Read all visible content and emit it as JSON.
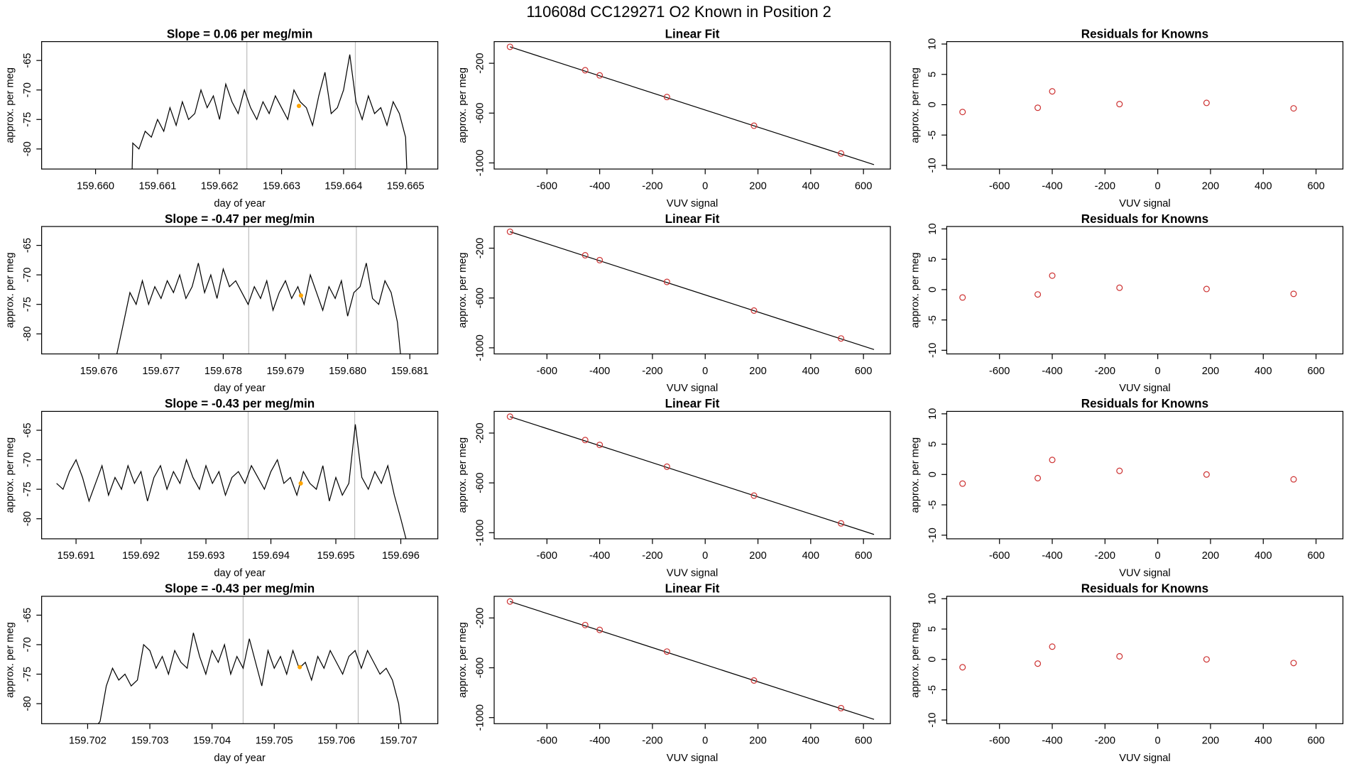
{
  "title": "110608d      CC129271    O2 Known in Position  2",
  "chart_data": [
    {
      "type": "line",
      "title": "Slope =  0.06  per meg/min",
      "xlabel": "day of year",
      "ylabel": "approx. per meg",
      "color": "#000000",
      "x": [
        159.66059,
        159.6606,
        159.6607,
        159.6608,
        159.6609,
        159.661,
        159.6611,
        159.6612,
        159.6613,
        159.6614,
        159.6615,
        159.6616,
        159.6617,
        159.6618,
        159.6619,
        159.662,
        159.6621,
        159.6622,
        159.6623,
        159.6624,
        159.6625,
        159.6626,
        159.6627,
        159.6628,
        159.6629,
        159.663,
        159.6631,
        159.6632,
        159.6633,
        159.6634,
        159.6635,
        159.6636,
        159.6637,
        159.6638,
        159.6639,
        159.664,
        159.6641,
        159.6642,
        159.6643,
        159.6644,
        159.6645,
        159.6646,
        159.6647,
        159.6648,
        159.6649,
        159.665,
        159.66502
      ],
      "values": [
        -83.4,
        -79,
        -80,
        -77,
        -78,
        -75,
        -77,
        -73,
        -76,
        -72,
        -75,
        -74,
        -70,
        -73,
        -71,
        -75,
        -69,
        -72,
        -74,
        -70,
        -73,
        -75,
        -72,
        -74,
        -71,
        -73,
        -75,
        -70,
        -72,
        -73,
        -76,
        -71,
        -67,
        -74,
        -73,
        -70,
        -64,
        -72,
        -75,
        -71,
        -74,
        -73,
        -76,
        -72,
        -74,
        -78,
        -83.4
      ],
      "vlines": [
        159.66244,
        159.66419
      ],
      "vline_color": "#bebebe",
      "highlight": {
        "x": 159.66328,
        "y": -72.7
      },
      "highlight_color": "#ffa500",
      "xlim": [
        159.65913,
        159.66552
      ],
      "ylim": [
        -83.4,
        -61.8
      ],
      "xticks": [
        {
          "value": 159.66,
          "label": "159.660"
        },
        159.661,
        159.662,
        159.663,
        159.664,
        159.665
      ],
      "yticks": [
        -65,
        -70,
        -75,
        -80
      ]
    },
    {
      "type": "scatter",
      "title": "Linear Fit",
      "xlabel": "VUV signal",
      "ylabel": "approx. per meg",
      "color": "#cd3333",
      "x": [
        -740,
        -455,
        -400,
        -145,
        185,
        515
      ],
      "values": [
        -68,
        -256,
        -297,
        -471,
        -701,
        -924
      ],
      "fit_x": [
        -740,
        640
      ],
      "fit_y": [
        -68,
        -1014
      ],
      "xlim": [
        -800,
        702
      ],
      "ylim": [
        -1049,
        -26
      ],
      "xticks": [
        -600,
        -400,
        -200,
        0,
        200,
        400,
        600
      ],
      "yticks": [
        -200,
        -600,
        -1000
      ]
    },
    {
      "type": "scatter",
      "title": "Residuals for Knowns",
      "xlabel": "VUV signal",
      "ylabel": "approx. per meg",
      "color": "#cd3333",
      "x": [
        -740,
        -455,
        -400,
        -145,
        185,
        515
      ],
      "values": [
        -1.2,
        -0.5,
        2.2,
        0.1,
        0.3,
        -0.6
      ],
      "xlim": [
        -800,
        702
      ],
      "ylim": [
        -10.6,
        10.4
      ],
      "xticks": [
        -600,
        -400,
        -200,
        0,
        200,
        400,
        600
      ],
      "yticks": [
        -10,
        -5,
        0,
        5,
        10
      ]
    },
    {
      "type": "line",
      "title": "Slope =  -0.47  per meg/min",
      "xlabel": "day of year",
      "ylabel": "approx. per meg",
      "color": "#000000",
      "x": [
        159.67629,
        159.6764,
        159.6765,
        159.6766,
        159.6767,
        159.6768,
        159.6769,
        159.677,
        159.6771,
        159.6772,
        159.6773,
        159.6774,
        159.6775,
        159.6776,
        159.6777,
        159.6778,
        159.6779,
        159.678,
        159.6781,
        159.6782,
        159.6783,
        159.6784,
        159.6785,
        159.6786,
        159.6787,
        159.6788,
        159.6789,
        159.679,
        159.6791,
        159.6792,
        159.6793,
        159.6794,
        159.6795,
        159.6796,
        159.6797,
        159.6798,
        159.6799,
        159.68,
        159.6801,
        159.6802,
        159.6803,
        159.6804,
        159.6805,
        159.6806,
        159.6807,
        159.6808,
        159.68085
      ],
      "values": [
        -83.4,
        -78,
        -73,
        -75,
        -71,
        -75,
        -72,
        -74,
        -71,
        -73,
        -70,
        -74,
        -72,
        -68,
        -73,
        -70,
        -74,
        -69,
        -72,
        -71,
        -73,
        -75,
        -72,
        -74,
        -71,
        -76,
        -73,
        -71,
        -74,
        -72,
        -75,
        -70,
        -73,
        -76,
        -72,
        -74,
        -71,
        -77,
        -73,
        -72,
        -68,
        -74,
        -75,
        -71,
        -73,
        -78,
        -83.4
      ],
      "vlines": [
        159.67841,
        159.68014
      ],
      "vline_color": "#bebebe",
      "highlight": {
        "x": 159.67925,
        "y": -73.5
      },
      "highlight_color": "#ffa500",
      "xlim": [
        159.67508,
        159.68145
      ],
      "ylim": [
        -83.4,
        -61.8
      ],
      "xticks": [
        159.676,
        159.677,
        159.678,
        159.679,
        {
          "value": 159.68,
          "label": "159.680"
        },
        159.681
      ],
      "yticks": [
        -65,
        -70,
        -75,
        -80
      ]
    },
    {
      "type": "scatter",
      "title": "Linear Fit",
      "xlabel": "VUV signal",
      "ylabel": "approx. per meg",
      "color": "#cd3333",
      "x": [
        -740,
        -455,
        -400,
        -145,
        185,
        515
      ],
      "values": [
        -68,
        -257,
        -296,
        -471,
        -701,
        -925
      ],
      "fit_x": [
        -740,
        640
      ],
      "fit_y": [
        -68,
        -1014
      ],
      "xlim": [
        -800,
        702
      ],
      "ylim": [
        -1049,
        -26
      ],
      "xticks": [
        -600,
        -400,
        -200,
        0,
        200,
        400,
        600
      ],
      "yticks": [
        -200,
        -600,
        -1000
      ]
    },
    {
      "type": "scatter",
      "title": "Residuals for Knowns",
      "xlabel": "VUV signal",
      "ylabel": "approx. per meg",
      "color": "#cd3333",
      "x": [
        -740,
        -455,
        -400,
        -145,
        185,
        515
      ],
      "values": [
        -1.3,
        -0.8,
        2.3,
        0.3,
        0.1,
        -0.7
      ],
      "xlim": [
        -800,
        702
      ],
      "ylim": [
        -10.6,
        10.4
      ],
      "xticks": [
        -600,
        -400,
        -200,
        0,
        200,
        400,
        600
      ],
      "yticks": [
        -10,
        -5,
        0,
        5,
        10
      ]
    },
    {
      "type": "line",
      "title": "Slope =  -0.43  per meg/min",
      "xlabel": "day of year",
      "ylabel": "approx. per meg",
      "color": "#000000",
      "x": [
        159.6907,
        159.6908,
        159.6909,
        159.691,
        159.6911,
        159.6912,
        159.6913,
        159.6914,
        159.6915,
        159.6916,
        159.6917,
        159.6918,
        159.6919,
        159.692,
        159.6921,
        159.6922,
        159.6923,
        159.6924,
        159.6925,
        159.6926,
        159.6927,
        159.6928,
        159.6929,
        159.693,
        159.6931,
        159.6932,
        159.6933,
        159.6934,
        159.6935,
        159.6936,
        159.6937,
        159.6938,
        159.6939,
        159.694,
        159.6941,
        159.6942,
        159.6943,
        159.6944,
        159.6945,
        159.6946,
        159.6947,
        159.6948,
        159.6949,
        159.695,
        159.6951,
        159.6952,
        159.6953,
        159.6954,
        159.6955,
        159.6956,
        159.6957,
        159.6958,
        159.6959,
        159.696,
        159.69608
      ],
      "values": [
        -74,
        -75,
        -72,
        -70,
        -73,
        -77,
        -74,
        -71,
        -76,
        -73,
        -75,
        -71,
        -74,
        -72,
        -77,
        -73,
        -71,
        -75,
        -72,
        -74,
        -70,
        -73,
        -75,
        -71,
        -74,
        -72,
        -76,
        -73,
        -72,
        -74,
        -71,
        -73,
        -75,
        -72,
        -70,
        -74,
        -73,
        -76,
        -72,
        -74,
        -75,
        -71,
        -77,
        -73,
        -76,
        -74,
        -64,
        -73,
        -75,
        -72,
        -74,
        -71,
        -76,
        -80,
        -83.4
      ],
      "vlines": [
        159.69365,
        159.69529
      ],
      "vline_color": "#bebebe",
      "highlight": {
        "x": 159.69446,
        "y": -74
      },
      "highlight_color": "#ffa500",
      "xlim": [
        159.69047,
        159.69657
      ],
      "ylim": [
        -83.4,
        -61.8
      ],
      "xticks": [
        159.691,
        159.692,
        159.693,
        159.694,
        159.695,
        159.696
      ],
      "yticks": [
        -65,
        -70,
        -75,
        -80
      ]
    },
    {
      "type": "scatter",
      "title": "Linear Fit",
      "xlabel": "VUV signal",
      "ylabel": "approx. per meg",
      "color": "#cd3333",
      "x": [
        -740,
        -455,
        -400,
        -145,
        185,
        515
      ],
      "values": [
        -68,
        -256,
        -295,
        -470,
        -702,
        -925
      ],
      "fit_x": [
        -740,
        640
      ],
      "fit_y": [
        -68,
        -1014
      ],
      "xlim": [
        -800,
        702
      ],
      "ylim": [
        -1049,
        -26
      ],
      "xticks": [
        -600,
        -400,
        -200,
        0,
        200,
        400,
        600
      ],
      "yticks": [
        -200,
        -600,
        -1000
      ]
    },
    {
      "type": "scatter",
      "title": "Residuals for Knowns",
      "xlabel": "VUV signal",
      "ylabel": "approx. per meg",
      "color": "#cd3333",
      "x": [
        -740,
        -455,
        -400,
        -145,
        185,
        515
      ],
      "values": [
        -1.5,
        -0.6,
        2.4,
        0.6,
        0,
        -0.8
      ],
      "xlim": [
        -800,
        702
      ],
      "ylim": [
        -10.6,
        10.4
      ],
      "xticks": [
        -600,
        -400,
        -200,
        0,
        200,
        400,
        600
      ],
      "yticks": [
        -10,
        -5,
        0,
        5,
        10
      ]
    },
    {
      "type": "line",
      "title": "Slope =  -0.43  per meg/min",
      "xlabel": "day of year",
      "ylabel": "approx. per meg",
      "color": "#000000",
      "x": [
        159.70217,
        159.7022,
        159.7023,
        159.7024,
        159.7025,
        159.7026,
        159.7027,
        159.7028,
        159.7029,
        159.703,
        159.7031,
        159.7032,
        159.7033,
        159.7034,
        159.7035,
        159.7036,
        159.7037,
        159.7038,
        159.7039,
        159.704,
        159.7041,
        159.7042,
        159.7043,
        159.7044,
        159.7045,
        159.7046,
        159.7047,
        159.7048,
        159.7049,
        159.705,
        159.7051,
        159.7052,
        159.7053,
        159.7054,
        159.7055,
        159.7056,
        159.7057,
        159.7058,
        159.7059,
        159.706,
        159.7061,
        159.7062,
        159.7063,
        159.7064,
        159.7065,
        159.7066,
        159.7067,
        159.7068,
        159.7069,
        159.707,
        159.70704
      ],
      "values": [
        -83.4,
        -83,
        -77,
        -74,
        -76,
        -75,
        -77,
        -76,
        -70,
        -71,
        -74,
        -72,
        -75,
        -71,
        -73,
        -74,
        -68,
        -72,
        -75,
        -71,
        -73,
        -70,
        -75,
        -72,
        -74,
        -69,
        -73,
        -77,
        -71,
        -74,
        -72,
        -75,
        -71,
        -74,
        -73,
        -76,
        -72,
        -74,
        -71,
        -73,
        -75,
        -72,
        -71,
        -74,
        -71,
        -73,
        -75,
        -74,
        -76,
        -80,
        -83.4
      ],
      "vlines": [
        159.7045,
        159.70635
      ],
      "vline_color": "#bebebe",
      "highlight": {
        "x": 159.70541,
        "y": -73.8
      },
      "highlight_color": "#ffa500",
      "xlim": [
        159.70126,
        159.70763
      ],
      "ylim": [
        -83.4,
        -61.8
      ],
      "xticks": [
        159.702,
        159.703,
        159.704,
        159.705,
        159.706,
        159.707
      ],
      "yticks": [
        -65,
        -70,
        -75,
        -80
      ]
    },
    {
      "type": "scatter",
      "title": "Linear Fit",
      "xlabel": "VUV signal",
      "ylabel": "approx. per meg",
      "color": "#cd3333",
      "x": [
        -740,
        -455,
        -400,
        -145,
        185,
        515
      ],
      "values": [
        -68,
        -257,
        -296,
        -470,
        -702,
        -924
      ],
      "fit_x": [
        -740,
        640
      ],
      "fit_y": [
        -68,
        -1014
      ],
      "xlim": [
        -800,
        702
      ],
      "ylim": [
        -1049,
        -26
      ],
      "xticks": [
        -600,
        -400,
        -200,
        0,
        200,
        400,
        600
      ],
      "yticks": [
        -200,
        -600,
        -1000
      ]
    },
    {
      "type": "scatter",
      "title": "Residuals for Knowns",
      "xlabel": "VUV signal",
      "ylabel": "approx. per meg",
      "color": "#cd3333",
      "x": [
        -740,
        -455,
        -400,
        -145,
        185,
        515
      ],
      "values": [
        -1.3,
        -0.7,
        2.1,
        0.5,
        0,
        -0.6
      ],
      "xlim": [
        -800,
        702
      ],
      "ylim": [
        -10.6,
        10.4
      ],
      "xticks": [
        -600,
        -400,
        -200,
        0,
        200,
        400,
        600
      ],
      "yticks": [
        -10,
        -5,
        0,
        5,
        10
      ]
    }
  ]
}
